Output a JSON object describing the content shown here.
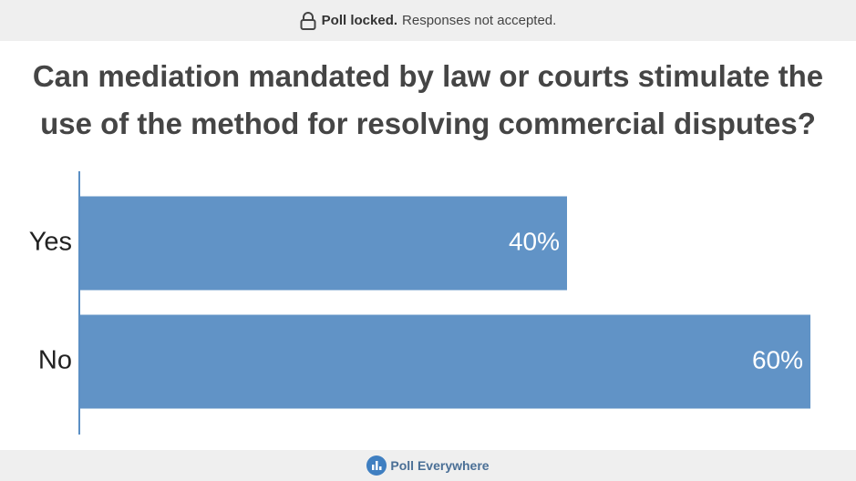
{
  "banner": {
    "status": "Poll locked.",
    "message": "Responses not accepted."
  },
  "chart_data": {
    "type": "bar",
    "orientation": "horizontal",
    "title": "Can mediation mandated by law or courts stimulate the use of the method for resolving commercial disputes?",
    "categories": [
      "Yes",
      "No"
    ],
    "values": [
      40,
      60
    ],
    "value_labels": [
      "40%",
      "60%"
    ],
    "color": "#6193c6"
  },
  "footer": {
    "brand": "Poll Everywhere"
  }
}
